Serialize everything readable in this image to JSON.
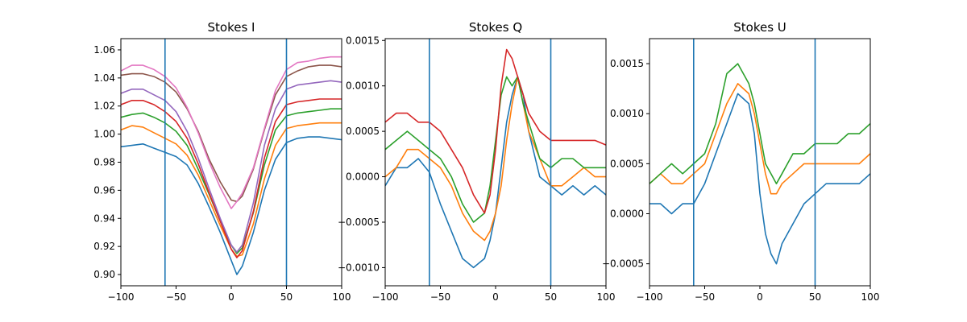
{
  "chart_data": [
    {
      "type": "line",
      "title": "Stokes I",
      "xlabel": "",
      "ylabel": "",
      "xlim": [
        -100,
        100
      ],
      "ylim": [
        0.892,
        1.068
      ],
      "xticks": [
        -100,
        -50,
        0,
        50,
        100
      ],
      "xtick_labels": [
        "−100",
        "−50",
        "0",
        "50",
        "100"
      ],
      "yticks": [
        0.9,
        0.92,
        0.94,
        0.96,
        0.98,
        1.0,
        1.02,
        1.04,
        1.06
      ],
      "ytick_labels": [
        "0.90",
        "0.92",
        "0.94",
        "0.96",
        "0.98",
        "1.00",
        "1.02",
        "1.04",
        "1.06"
      ],
      "grid": false,
      "vlines": [
        -60,
        50
      ],
      "vline_color": "#1f77b4",
      "series": [
        {
          "color": "#1f77b4",
          "x": [
            -100,
            -90,
            -80,
            -70,
            -60,
            -50,
            -40,
            -30,
            -20,
            -10,
            0,
            5,
            10,
            20,
            30,
            40,
            50,
            60,
            70,
            80,
            90,
            100
          ],
          "values": [
            0.991,
            0.992,
            0.993,
            0.99,
            0.987,
            0.984,
            0.978,
            0.965,
            0.948,
            0.93,
            0.91,
            0.9,
            0.906,
            0.93,
            0.96,
            0.982,
            0.994,
            0.997,
            0.998,
            0.998,
            0.997,
            0.996
          ]
        },
        {
          "color": "#ff7f0e",
          "x": [
            -100,
            -90,
            -80,
            -70,
            -60,
            -50,
            -40,
            -30,
            -20,
            -10,
            0,
            5,
            10,
            20,
            30,
            40,
            50,
            60,
            70,
            80,
            90,
            100
          ],
          "values": [
            1.003,
            1.006,
            1.005,
            1.001,
            0.997,
            0.993,
            0.985,
            0.971,
            0.953,
            0.935,
            0.918,
            0.913,
            0.914,
            0.936,
            0.968,
            0.992,
            1.004,
            1.006,
            1.007,
            1.008,
            1.008,
            1.008
          ]
        },
        {
          "color": "#2ca02c",
          "x": [
            -100,
            -90,
            -80,
            -70,
            -60,
            -50,
            -40,
            -30,
            -20,
            -10,
            0,
            5,
            10,
            20,
            30,
            40,
            50,
            60,
            70,
            80,
            90,
            100
          ],
          "values": [
            1.012,
            1.014,
            1.015,
            1.012,
            1.008,
            1.002,
            0.992,
            0.975,
            0.957,
            0.938,
            0.921,
            0.915,
            0.919,
            0.944,
            0.978,
            1.003,
            1.013,
            1.015,
            1.016,
            1.017,
            1.018,
            1.018
          ]
        },
        {
          "color": "#d62728",
          "x": [
            -100,
            -90,
            -80,
            -70,
            -60,
            -50,
            -40,
            -30,
            -20,
            -10,
            0,
            5,
            10,
            20,
            30,
            40,
            50,
            60,
            70,
            80,
            90,
            100
          ],
          "values": [
            1.021,
            1.024,
            1.024,
            1.021,
            1.016,
            1.009,
            0.997,
            0.979,
            0.958,
            0.938,
            0.918,
            0.912,
            0.917,
            0.945,
            0.983,
            1.009,
            1.021,
            1.023,
            1.024,
            1.025,
            1.025,
            1.025
          ]
        },
        {
          "color": "#9467bd",
          "x": [
            -100,
            -90,
            -80,
            -70,
            -60,
            -50,
            -40,
            -30,
            -20,
            -10,
            0,
            5,
            10,
            20,
            30,
            40,
            50,
            60,
            70,
            80,
            90,
            100
          ],
          "values": [
            1.029,
            1.032,
            1.032,
            1.028,
            1.024,
            1.016,
            1.002,
            0.983,
            0.961,
            0.94,
            0.921,
            0.916,
            0.921,
            0.951,
            0.992,
            1.018,
            1.032,
            1.035,
            1.036,
            1.037,
            1.038,
            1.037
          ]
        },
        {
          "color": "#8c564b",
          "x": [
            -100,
            -90,
            -80,
            -70,
            -60,
            -50,
            -40,
            -30,
            -20,
            -10,
            0,
            5,
            10,
            20,
            30,
            40,
            50,
            60,
            70,
            80,
            90,
            100
          ],
          "values": [
            1.042,
            1.043,
            1.043,
            1.041,
            1.037,
            1.03,
            1.018,
            1.002,
            0.982,
            0.966,
            0.953,
            0.952,
            0.956,
            0.975,
            1.003,
            1.028,
            1.041,
            1.045,
            1.048,
            1.049,
            1.049,
            1.048
          ]
        },
        {
          "color": "#e377c2",
          "x": [
            -100,
            -90,
            -80,
            -70,
            -60,
            -50,
            -40,
            -30,
            -20,
            -10,
            0,
            5,
            10,
            20,
            30,
            40,
            50,
            60,
            70,
            80,
            90,
            100
          ],
          "values": [
            1.045,
            1.049,
            1.049,
            1.046,
            1.041,
            1.033,
            1.019,
            1.001,
            0.98,
            0.962,
            0.947,
            0.952,
            0.958,
            0.976,
            1.004,
            1.031,
            1.046,
            1.051,
            1.052,
            1.054,
            1.055,
            1.055
          ]
        }
      ]
    },
    {
      "type": "line",
      "title": "Stokes Q",
      "xlabel": "",
      "ylabel": "",
      "xlim": [
        -100,
        100
      ],
      "ylim": [
        -0.0012,
        0.00152
      ],
      "xticks": [
        -100,
        -50,
        0,
        50,
        100
      ],
      "xtick_labels": [
        "−100",
        "−50",
        "0",
        "50",
        "100"
      ],
      "yticks": [
        -0.001,
        -0.0005,
        0.0,
        0.0005,
        0.001,
        0.0015
      ],
      "ytick_labels": [
        "−0.0010",
        "−0.0005",
        "0.0000",
        "0.0005",
        "0.0010",
        "0.0015"
      ],
      "grid": false,
      "vlines": [
        -60,
        50
      ],
      "vline_color": "#1f77b4",
      "series": [
        {
          "color": "#1f77b4",
          "x": [
            -100,
            -90,
            -80,
            -70,
            -60,
            -50,
            -40,
            -30,
            -20,
            -10,
            -5,
            0,
            5,
            10,
            15,
            20,
            25,
            30,
            40,
            50,
            60,
            70,
            80,
            90,
            100
          ],
          "values": [
            -0.0001,
            0.0001,
            0.0001,
            0.0002,
            5e-05,
            -0.0003,
            -0.0006,
            -0.0009,
            -0.001,
            -0.0009,
            -0.0007,
            -0.0004,
            0.0001,
            0.0006,
            0.0009,
            0.0011,
            0.0009,
            0.0005,
            0.0,
            -0.0001,
            -0.0002,
            -0.0001,
            -0.0002,
            -0.0001,
            -0.0002
          ]
        },
        {
          "color": "#ff7f0e",
          "x": [
            -100,
            -90,
            -80,
            -70,
            -60,
            -50,
            -40,
            -30,
            -20,
            -10,
            -5,
            0,
            5,
            10,
            15,
            20,
            25,
            30,
            40,
            50,
            60,
            70,
            80,
            90,
            100
          ],
          "values": [
            0.0,
            0.0001,
            0.0003,
            0.0003,
            0.0002,
            0.0001,
            -0.0001,
            -0.0004,
            -0.0006,
            -0.0007,
            -0.0006,
            -0.0004,
            -0.0001,
            0.0004,
            0.0008,
            0.0011,
            0.0008,
            0.0005,
            0.0002,
            -0.0001,
            -0.0001,
            0.0,
            0.0001,
            0.0,
            0.0
          ]
        },
        {
          "color": "#2ca02c",
          "x": [
            -100,
            -90,
            -80,
            -70,
            -60,
            -50,
            -40,
            -30,
            -20,
            -10,
            -5,
            0,
            5,
            10,
            15,
            20,
            25,
            30,
            40,
            50,
            60,
            70,
            80,
            90,
            100
          ],
          "values": [
            0.0003,
            0.0004,
            0.0005,
            0.0004,
            0.0003,
            0.0002,
            0.0,
            -0.0003,
            -0.0005,
            -0.0004,
            -0.0001,
            0.0004,
            0.0009,
            0.0011,
            0.001,
            0.0011,
            0.0008,
            0.0006,
            0.0002,
            0.0001,
            0.0002,
            0.0002,
            0.0001,
            0.0001,
            0.0001
          ]
        },
        {
          "color": "#d62728",
          "x": [
            -100,
            -90,
            -80,
            -70,
            -60,
            -50,
            -40,
            -30,
            -20,
            -10,
            -5,
            0,
            5,
            10,
            15,
            20,
            25,
            30,
            40,
            50,
            60,
            70,
            80,
            90,
            100
          ],
          "values": [
            0.0006,
            0.0007,
            0.0007,
            0.0006,
            0.0006,
            0.0005,
            0.0003,
            0.0001,
            -0.0002,
            -0.0004,
            -0.0002,
            0.0003,
            0.001,
            0.0014,
            0.0013,
            0.0011,
            0.0009,
            0.0007,
            0.0005,
            0.0004,
            0.0004,
            0.0004,
            0.0004,
            0.0004,
            0.00035
          ]
        }
      ]
    },
    {
      "type": "line",
      "title": "Stokes U",
      "xlabel": "",
      "ylabel": "",
      "xlim": [
        -100,
        100
      ],
      "ylim": [
        -0.00072,
        0.00175
      ],
      "xticks": [
        -100,
        -50,
        0,
        50,
        100
      ],
      "xtick_labels": [
        "−100",
        "−50",
        "0",
        "50",
        "100"
      ],
      "yticks": [
        -0.0005,
        0.0,
        0.0005,
        0.001,
        0.0015
      ],
      "ytick_labels": [
        "−0.0005",
        "0.0000",
        "0.0005",
        "0.0010",
        "0.0015"
      ],
      "grid": false,
      "vlines": [
        -60,
        50
      ],
      "vline_color": "#1f77b4",
      "series": [
        {
          "color": "#1f77b4",
          "x": [
            -100,
            -90,
            -80,
            -70,
            -60,
            -50,
            -40,
            -30,
            -20,
            -10,
            -5,
            0,
            5,
            10,
            15,
            20,
            30,
            40,
            50,
            60,
            70,
            80,
            90,
            100
          ],
          "values": [
            0.0001,
            0.0001,
            0.0,
            0.0001,
            0.0001,
            0.0003,
            0.0006,
            0.0009,
            0.0012,
            0.0011,
            0.0008,
            0.0002,
            -0.0002,
            -0.0004,
            -0.0005,
            -0.0003,
            -0.0001,
            0.0001,
            0.0002,
            0.0003,
            0.0003,
            0.0003,
            0.0003,
            0.0004
          ]
        },
        {
          "color": "#ff7f0e",
          "x": [
            -100,
            -90,
            -80,
            -70,
            -60,
            -50,
            -40,
            -30,
            -20,
            -10,
            -5,
            0,
            5,
            10,
            15,
            20,
            30,
            40,
            50,
            60,
            70,
            80,
            90,
            100
          ],
          "values": [
            0.0003,
            0.0004,
            0.0003,
            0.0003,
            0.0004,
            0.0005,
            0.0008,
            0.0011,
            0.0013,
            0.0012,
            0.001,
            0.0007,
            0.0004,
            0.0002,
            0.0002,
            0.0003,
            0.0004,
            0.0005,
            0.0005,
            0.0005,
            0.0005,
            0.0005,
            0.0005,
            0.0006
          ]
        },
        {
          "color": "#2ca02c",
          "x": [
            -100,
            -90,
            -80,
            -70,
            -60,
            -50,
            -40,
            -30,
            -20,
            -10,
            -5,
            0,
            5,
            10,
            15,
            20,
            30,
            40,
            50,
            60,
            70,
            80,
            90,
            100
          ],
          "values": [
            0.0003,
            0.0004,
            0.0005,
            0.0004,
            0.0005,
            0.0006,
            0.0009,
            0.0014,
            0.0015,
            0.0013,
            0.0011,
            0.0008,
            0.0005,
            0.0004,
            0.0003,
            0.0004,
            0.0006,
            0.0006,
            0.0007,
            0.0007,
            0.0007,
            0.0008,
            0.0008,
            0.0009
          ]
        }
      ]
    }
  ]
}
